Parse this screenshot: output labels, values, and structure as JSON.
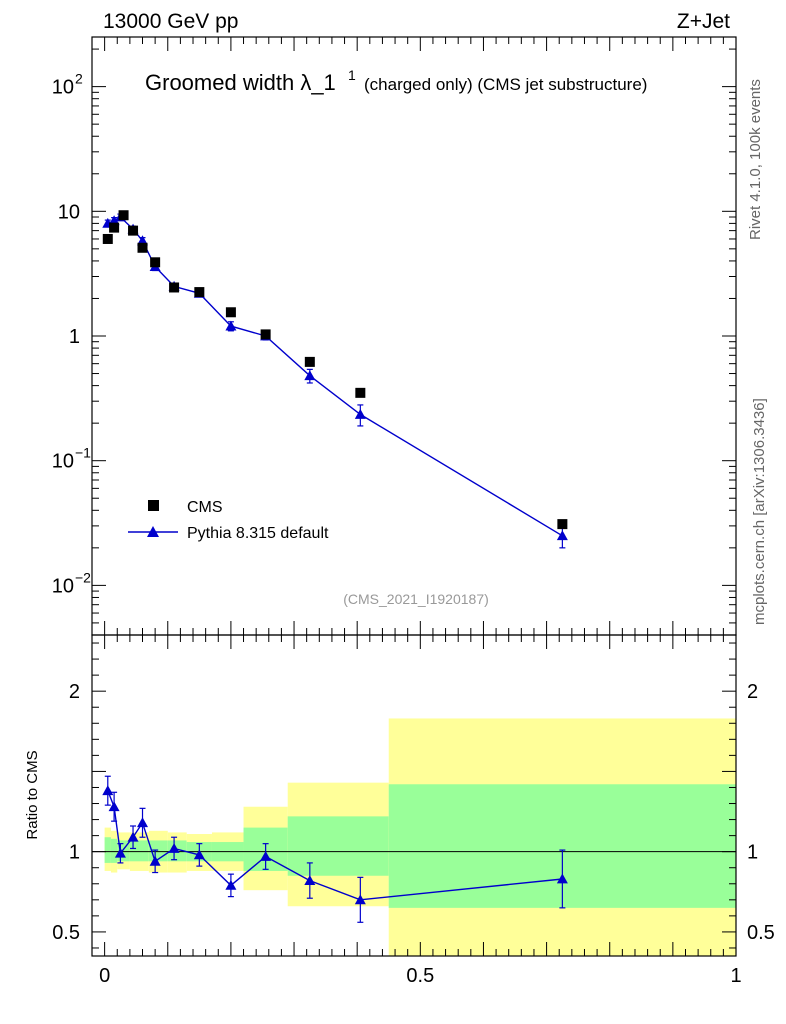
{
  "header": {
    "energy_label": "13000 GeV pp",
    "process_label": "Z+Jet"
  },
  "side_labels": {
    "rivet": "Rivet 4.1.0,  100k events",
    "mcplots": "mcplots.cern.ch [arXiv:1306.3436]"
  },
  "chart_data": [
    {
      "type": "scatter",
      "title_main": "Groomed width",
      "title_symbol": "λ_1",
      "title_sup": "1",
      "title_suffix": "(charged only) (CMS jet substructure)",
      "analysis_id": "(CMS_2021_I1920187)",
      "yscale": "log",
      "ylim": [
        0.004,
        250
      ],
      "xlim": [
        -0.02,
        1.0
      ],
      "y_ticks": [
        {
          "value": 100,
          "base": "10",
          "exp": "2"
        },
        {
          "value": 10,
          "base": "10",
          "exp": ""
        },
        {
          "value": 1,
          "base": "1",
          "exp": ""
        },
        {
          "value": 0.1,
          "base": "10",
          "exp": "−1"
        },
        {
          "value": 0.01,
          "base": "10",
          "exp": "−2"
        }
      ],
      "legend": {
        "position": "bottom-left",
        "entries": [
          "CMS",
          "Pythia 8.315 default"
        ]
      },
      "series": [
        {
          "name": "CMS",
          "marker": "square",
          "color": "#000000",
          "x": [
            0.005,
            0.015,
            0.03,
            0.045,
            0.06,
            0.08,
            0.11,
            0.15,
            0.2,
            0.255,
            0.325,
            0.405,
            0.725
          ],
          "y": [
            6.0,
            7.4,
            9.3,
            7.0,
            5.1,
            3.9,
            2.45,
            2.25,
            1.55,
            1.03,
            0.62,
            0.35,
            0.031
          ]
        },
        {
          "name": "Pythia 8.315 default",
          "marker": "triangle",
          "color": "#0000cc",
          "x": [
            0.005,
            0.015,
            0.025,
            0.045,
            0.06,
            0.08,
            0.11,
            0.15,
            0.2,
            0.255,
            0.325,
            0.405,
            0.725
          ],
          "y": [
            8.0,
            8.4,
            9.0,
            7.2,
            5.8,
            3.6,
            2.5,
            2.2,
            1.2,
            1.0,
            0.48,
            0.235,
            0.025
          ],
          "err": [
            0.5,
            0.5,
            0.5,
            0.4,
            0.35,
            0.25,
            0.15,
            0.14,
            0.1,
            0.07,
            0.06,
            0.045,
            0.005
          ]
        }
      ]
    },
    {
      "type": "scatter",
      "ylabel": "Ratio to CMS",
      "ylim": [
        0.35,
        2.35
      ],
      "xlim": [
        -0.02,
        1.0
      ],
      "y_ticks": [
        {
          "value": 2,
          "label": "2"
        },
        {
          "value": 1,
          "label": "1"
        },
        {
          "value": 0.5,
          "label": "0.5"
        }
      ],
      "x_ticks": [
        {
          "value": 0,
          "label": "0"
        },
        {
          "value": 0.5,
          "label": "0.5"
        },
        {
          "value": 1,
          "label": "1"
        }
      ],
      "bands": [
        {
          "x0": 0.0,
          "x1": 0.01,
          "y_lo": 0.88,
          "y_hi": 1.15,
          "g_lo": 0.93,
          "g_hi": 1.09
        },
        {
          "x0": 0.01,
          "x1": 0.02,
          "y_lo": 0.87,
          "y_hi": 1.13,
          "g_lo": 0.93,
          "g_hi": 1.08
        },
        {
          "x0": 0.02,
          "x1": 0.04,
          "y_lo": 0.89,
          "y_hi": 1.12,
          "g_lo": 0.94,
          "g_hi": 1.07
        },
        {
          "x0": 0.04,
          "x1": 0.06,
          "y_lo": 0.88,
          "y_hi": 1.12,
          "g_lo": 0.94,
          "g_hi": 1.07
        },
        {
          "x0": 0.06,
          "x1": 0.07,
          "y_lo": 0.88,
          "y_hi": 1.12,
          "g_lo": 0.94,
          "g_hi": 1.07
        },
        {
          "x0": 0.07,
          "x1": 0.1,
          "y_lo": 0.87,
          "y_hi": 1.13,
          "g_lo": 0.94,
          "g_hi": 1.07
        },
        {
          "x0": 0.1,
          "x1": 0.13,
          "y_lo": 0.87,
          "y_hi": 1.12,
          "g_lo": 0.94,
          "g_hi": 1.07
        },
        {
          "x0": 0.13,
          "x1": 0.17,
          "y_lo": 0.88,
          "y_hi": 1.11,
          "g_lo": 0.94,
          "g_hi": 1.06
        },
        {
          "x0": 0.17,
          "x1": 0.22,
          "y_lo": 0.88,
          "y_hi": 1.12,
          "g_lo": 0.94,
          "g_hi": 1.06
        },
        {
          "x0": 0.22,
          "x1": 0.29,
          "y_lo": 0.76,
          "y_hi": 1.28,
          "g_lo": 0.88,
          "g_hi": 1.15
        },
        {
          "x0": 0.29,
          "x1": 0.45,
          "y_lo": 0.66,
          "y_hi": 1.43,
          "g_lo": 0.85,
          "g_hi": 1.22
        },
        {
          "x0": 0.45,
          "x1": 1.0,
          "y_lo": 0.0,
          "y_hi": 1.83,
          "g_lo": 0.65,
          "g_hi": 1.42
        }
      ],
      "series": [
        {
          "name": "Pythia 8.315 default",
          "marker": "triangle",
          "color": "#0000cc",
          "x": [
            0.005,
            0.015,
            0.025,
            0.045,
            0.06,
            0.08,
            0.11,
            0.15,
            0.2,
            0.255,
            0.325,
            0.405,
            0.725
          ],
          "y": [
            1.38,
            1.28,
            0.99,
            1.09,
            1.18,
            0.94,
            1.02,
            0.98,
            0.79,
            0.97,
            0.82,
            0.7,
            0.83
          ],
          "err": [
            0.09,
            0.09,
            0.06,
            0.07,
            0.09,
            0.07,
            0.07,
            0.07,
            0.07,
            0.08,
            0.11,
            0.14,
            0.18
          ]
        }
      ]
    }
  ]
}
